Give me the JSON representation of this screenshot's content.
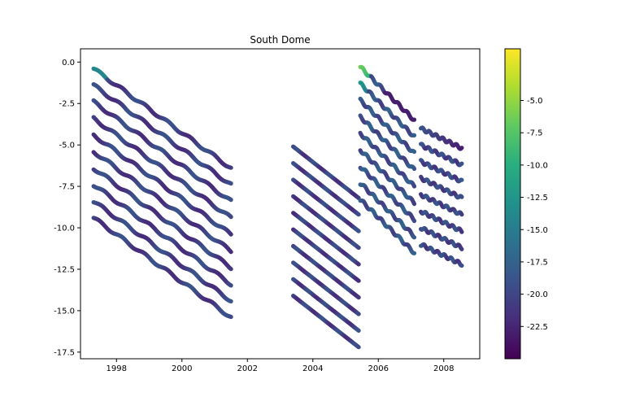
{
  "chart_data": {
    "type": "scatter",
    "title": "South Dome",
    "xlabel": "",
    "ylabel": "",
    "xlim": [
      1996.9,
      2009.1
    ],
    "ylim": [
      -17.9,
      0.8
    ],
    "xticks": [
      "1998",
      "2000",
      "2002",
      "2004",
      "2006",
      "2008"
    ],
    "xtick_values": [
      1998,
      2000,
      2002,
      2004,
      2006,
      2008
    ],
    "yticks": [
      "0.0",
      "-2.5",
      "-5.0",
      "-7.5",
      "-10.0",
      "-12.5",
      "-15.0",
      "-17.5"
    ],
    "ytick_values": [
      0.0,
      -2.5,
      -5.0,
      -7.5,
      -10.0,
      -12.5,
      -15.0,
      -17.5
    ],
    "grid": false,
    "colormap": "viridis",
    "colorbar": {
      "range": [
        -25.0,
        -1.0
      ],
      "ticks": [
        "-5.0",
        "-7.5",
        "-10.0",
        "-12.5",
        "-15.0",
        "-17.5",
        "-20.0",
        "-22.5"
      ],
      "tick_values": [
        -5.0,
        -7.5,
        -10.0,
        -12.5,
        -15.0,
        -17.5,
        -20.0,
        -22.5
      ]
    },
    "series": [
      {
        "segment": 1,
        "x_start": 1997.3,
        "x_end": 2001.5,
        "y_start": [
          -0.4,
          -1.4,
          -2.4,
          -3.4,
          -4.4,
          -5.4,
          -6.4,
          -7.4,
          -8.4,
          -9.4
        ],
        "y_end": [
          -6.4,
          -7.4,
          -8.4,
          -9.4,
          -10.4,
          -11.4,
          -12.4,
          -13.4,
          -14.4,
          -15.4
        ],
        "typical_value": -20.5
      },
      {
        "segment": 2,
        "x_start": 2003.4,
        "x_end": 2005.4,
        "y_start": [
          -5.1,
          -6.1,
          -7.1,
          -8.1,
          -9.1,
          -10.1,
          -11.1,
          -12.1,
          -13.1,
          -14.1
        ],
        "y_end": [
          -8.2,
          -9.2,
          -10.2,
          -11.2,
          -12.2,
          -13.2,
          -14.2,
          -15.2,
          -16.2,
          -17.2
        ],
        "typical_value": -20.5
      },
      {
        "segment": 3,
        "x_start": 2005.45,
        "x_end": 2007.1,
        "y_start": [
          -0.3,
          -1.3,
          -2.3,
          -3.3,
          -4.3,
          -5.3,
          -6.3,
          -7.3,
          -8.3
        ],
        "y_end": [
          -3.5,
          -4.5,
          -5.5,
          -6.5,
          -7.5,
          -8.5,
          -9.5,
          -10.5,
          -11.5
        ],
        "typical_value": -19.0
      },
      {
        "segment": 4,
        "x_start": 2007.3,
        "x_end": 2008.55,
        "y_start": [
          -4.0,
          -5.0,
          -6.0,
          -7.0,
          -8.0,
          -9.0,
          -10.0,
          -11.0
        ],
        "y_end": [
          -5.2,
          -6.2,
          -7.2,
          -8.2,
          -9.2,
          -10.2,
          -11.2,
          -12.2
        ],
        "typical_value": -20.0
      }
    ]
  }
}
